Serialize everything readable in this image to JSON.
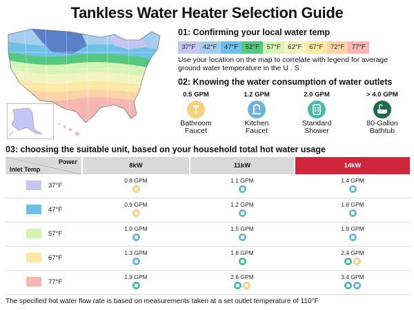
{
  "title": "Tankless Water Heater Selection Guide",
  "section1": {
    "heading": "01:  Confirming your local water temp",
    "legend": [
      {
        "label": "37°F",
        "color": "#c5c6f2"
      },
      {
        "label": "42°F",
        "color": "#a7cdee"
      },
      {
        "label": "47°F",
        "color": "#6ec0e8"
      },
      {
        "label": "52°F",
        "color": "#55c77f"
      },
      {
        "label": "57°F",
        "color": "#d6f3b3"
      },
      {
        "label": "62°F",
        "color": "#f1f3c0"
      },
      {
        "label": "67°F",
        "color": "#fce7a3"
      },
      {
        "label": "72°F",
        "color": "#fbd3a9"
      },
      {
        "label": "77°F",
        "color": "#f7b6b0"
      }
    ],
    "description": "Use your location on the map to correlate with legend for average ground water temperature in the U . S"
  },
  "section2": {
    "heading": "02:  Knowing the water consumption of water outlets",
    "outlets": [
      {
        "gpm": "0.5 GPM",
        "name1": "Bathroom",
        "name2": "Faucet",
        "icon": "bathroom-faucet-icon",
        "color": "#f6cf80"
      },
      {
        "gpm": "1.2 GPM",
        "name1": "Kitchen",
        "name2": "Faucet",
        "icon": "kitchen-faucet-icon",
        "color": "#6bb2dd"
      },
      {
        "gpm": "2.0 GPM",
        "name1": "Standard",
        "name2": "Shower",
        "icon": "shower-icon",
        "color": "#4fb8a4"
      },
      {
        "gpm": "> 4.0 GPM",
        "name1": "80-Gallon",
        "name2": "Bathtub",
        "icon": "bathtub-icon",
        "color": "#1f6b45"
      }
    ]
  },
  "section3": {
    "heading": "03:  choosing the suitable unit, based on your household total hot water usage"
  },
  "table": {
    "power_label": "Power",
    "inlet_label": "Inlet Temp",
    "columns": [
      "8kW",
      "11kW",
      "14kW"
    ],
    "rows": [
      {
        "temp": "37°F",
        "color": "#c5c6f2",
        "cells": [
          {
            "gpm": "0.8 GPM",
            "icons": [
              "bathroom"
            ]
          },
          {
            "gpm": "1.1 GPM",
            "icons": [
              "kitchen"
            ]
          },
          {
            "gpm": "1.4 GPM",
            "icons": [
              "kitchen"
            ]
          }
        ]
      },
      {
        "temp": "47°F",
        "color": "#6ec0e8",
        "cells": [
          {
            "gpm": "0.9 GPM",
            "icons": [
              "bathroom"
            ]
          },
          {
            "gpm": "1.2 GPM",
            "icons": [
              "kitchen"
            ]
          },
          {
            "gpm": "1.6 GPM",
            "icons": [
              "kitchen"
            ]
          }
        ]
      },
      {
        "temp": "57°F",
        "color": "#d6f3b3",
        "cells": [
          {
            "gpm": "1.0 GPM",
            "icons": [
              "kitchen"
            ]
          },
          {
            "gpm": "1.5 GPM",
            "icons": [
              "kitchen"
            ]
          },
          {
            "gpm": "1.9 GPM",
            "icons": [
              "kitchen"
            ]
          }
        ]
      },
      {
        "temp": "67°F",
        "color": "#fce7a3",
        "cells": [
          {
            "gpm": "1.3 GPM",
            "icons": [
              "kitchen"
            ]
          },
          {
            "gpm": "1.8 GPM",
            "icons": [
              "shower"
            ]
          },
          {
            "gpm": "2.4 GPM",
            "icons": [
              "shower",
              "bathroom"
            ]
          }
        ]
      },
      {
        "temp": "77°F",
        "color": "#f7b6b0",
        "cells": [
          {
            "gpm": "1.9 GPM",
            "icons": [
              "shower"
            ]
          },
          {
            "gpm": "2.6 GPM",
            "icons": [
              "shower",
              "bathroom"
            ]
          },
          {
            "gpm": "3.4 GPM",
            "icons": [
              "shower",
              "kitchen"
            ]
          }
        ]
      }
    ]
  },
  "icon_colors": {
    "bathroom": "#f6cf80",
    "kitchen": "#6bb2dd",
    "shower": "#4fb8a4"
  },
  "footer": "The specified hot water flow rate is based on measurements taken at a set outlet temperature of 110°F"
}
